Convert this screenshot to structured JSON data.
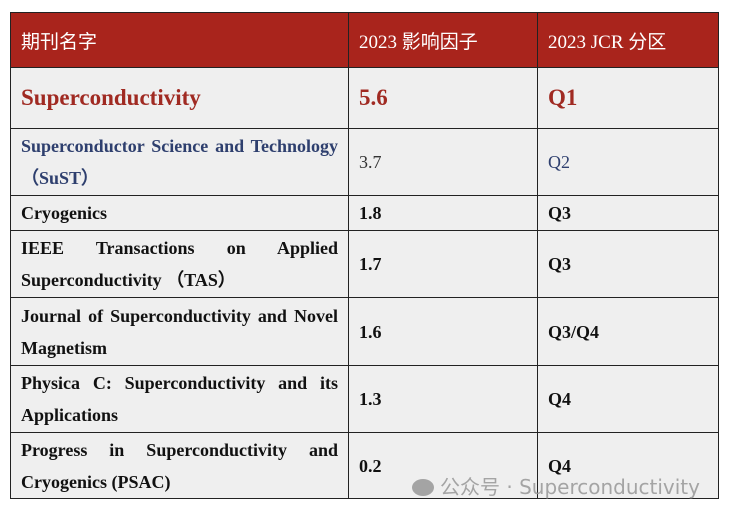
{
  "header": {
    "name": "期刊名字",
    "impact": "2023 影响因子",
    "jcr": "2023 JCR 分区"
  },
  "rows": [
    {
      "name": "Superconductivity",
      "impact": "5.6",
      "jcr": "Q1"
    },
    {
      "name": "Superconductor Science and Technology （SuST）",
      "impact": "3.7",
      "jcr": "Q2"
    },
    {
      "name": "Cryogenics",
      "impact": "1.8",
      "jcr": "Q3"
    },
    {
      "name": "IEEE Transactions on Applied Superconductivity （TAS）",
      "impact": "1.7",
      "jcr": "Q3"
    },
    {
      "name": "Journal of Superconductivity and Novel Magnetism",
      "impact": "1.6",
      "jcr": "Q3/Q4"
    },
    {
      "name": "Physica C: Superconductivity and its Applications",
      "impact": "1.3",
      "jcr": "Q4"
    },
    {
      "name": "Progress in Superconductivity and Cryogenics (PSAC)",
      "impact": "0.2",
      "jcr": "Q4"
    }
  ],
  "watermark": {
    "text": "公众号 · Superconductivity",
    "icon": "wechat-icon"
  },
  "colors": {
    "header_bg": "#a9241c",
    "highlight_text": "#a02a22",
    "second_text": "#2e3f6e"
  }
}
